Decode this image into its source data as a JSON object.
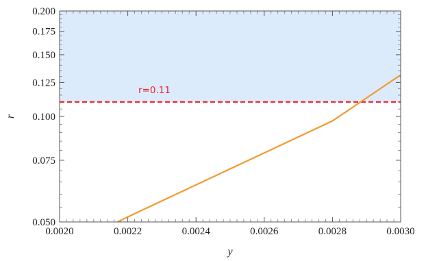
{
  "chart_data": {
    "type": "line",
    "xlabel": "y",
    "ylabel": "r",
    "xlim": [
      0.002,
      0.003
    ],
    "ylim": [
      0.05,
      0.2
    ],
    "y_scale": "log",
    "x_ticks": [
      "0.0020",
      "0.0022",
      "0.0024",
      "0.0026",
      "0.0028",
      "0.0030"
    ],
    "x_tick_values": [
      0.002,
      0.0022,
      0.0024,
      0.0026,
      0.0028,
      0.003
    ],
    "y_ticks": [
      "0.050",
      "0.075",
      "0.100",
      "0.125",
      "0.150",
      "0.175",
      "0.200"
    ],
    "y_tick_values": [
      0.05,
      0.075,
      0.1,
      0.125,
      0.15,
      0.175,
      0.2
    ],
    "series": [
      {
        "color": "#f39a2e",
        "x": [
          0.00217,
          0.0022,
          0.0024,
          0.0026,
          0.0028,
          0.003
        ],
        "values": [
          0.05,
          0.0517,
          0.0638,
          0.0787,
          0.0971,
          0.1314
        ]
      }
    ],
    "reference_line": {
      "y": 0.11,
      "label": "r=0.11",
      "color": "#e8202a",
      "style": "dashed"
    },
    "shaded_region": {
      "y_from": 0.11,
      "y_to": 0.2,
      "color": "#dcebfb"
    },
    "grid": false,
    "legend": "none"
  }
}
